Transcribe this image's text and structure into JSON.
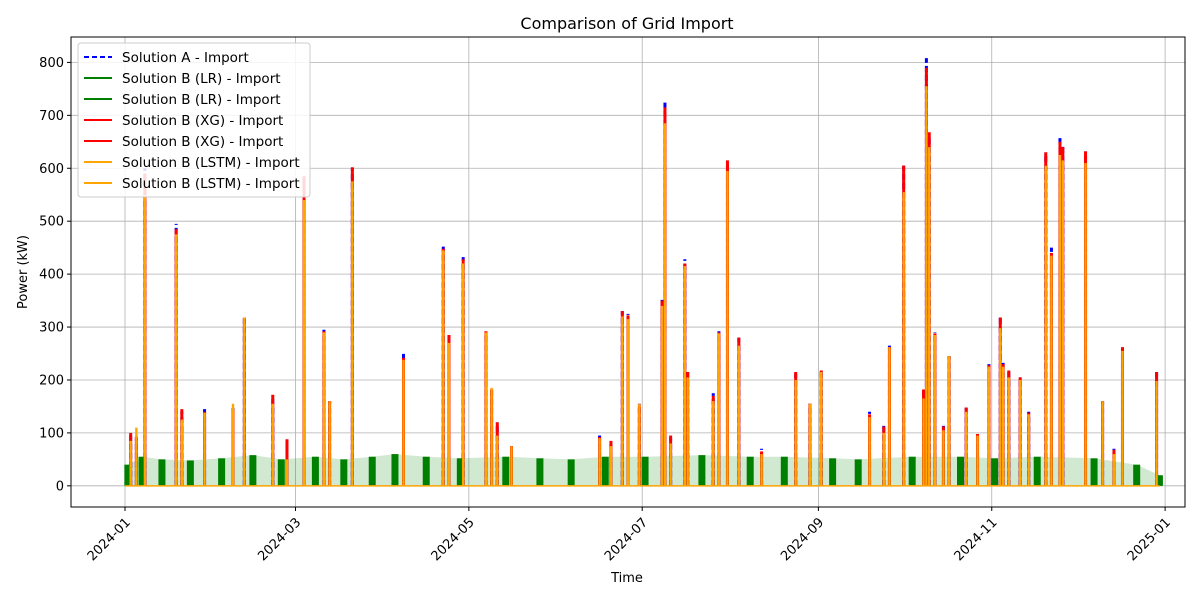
{
  "chart_data": {
    "type": "line",
    "title": "Comparison of Grid Import",
    "xlabel": "Time",
    "ylabel": "Power (kW)",
    "xlim": [
      "2023-12-13",
      "2025-01-08"
    ],
    "ylim": [
      -40,
      848
    ],
    "grid": true,
    "legend_position": "upper-left",
    "x_ticks": [
      "2024-01",
      "2024-03",
      "2024-05",
      "2024-07",
      "2024-09",
      "2024-11",
      "2025-01"
    ],
    "y_ticks": [
      0,
      100,
      200,
      300,
      400,
      500,
      600,
      700,
      800
    ],
    "legend": [
      {
        "label": "Solution A - Import",
        "color": "#0000ff",
        "dash": true
      },
      {
        "label": "Solution B (LR) - Import",
        "color": "#008000",
        "dash": false
      },
      {
        "label": "Solution B (LR) - Import",
        "color": "#008000",
        "dash": false
      },
      {
        "label": "Solution B (XG) - Import",
        "color": "#ff0000",
        "dash": false
      },
      {
        "label": "Solution B (XG) - Import",
        "color": "#ff0000",
        "dash": false
      },
      {
        "label": "Solution B (LSTM) - Import",
        "color": "#ffa500",
        "dash": false
      },
      {
        "label": "Solution B (LSTM) - Import",
        "color": "#ffa500",
        "dash": false
      }
    ],
    "series": [
      {
        "name": "Solution A - Import",
        "color": "#0000ff",
        "points": [
          [
            "2024-01-03",
            95
          ],
          [
            "2024-01-05",
            90
          ],
          [
            "2024-01-08",
            600
          ],
          [
            "2024-01-19",
            495
          ],
          [
            "2024-01-21",
            140
          ],
          [
            "2024-01-29",
            145
          ],
          [
            "2024-02-08",
            150
          ],
          [
            "2024-02-12",
            315
          ],
          [
            "2024-02-22",
            170
          ],
          [
            "2024-02-27",
            85
          ],
          [
            "2024-03-04",
            580
          ],
          [
            "2024-03-11",
            295
          ],
          [
            "2024-03-13",
            160
          ],
          [
            "2024-03-21",
            600
          ],
          [
            "2024-04-08",
            255
          ],
          [
            "2024-04-22",
            452
          ],
          [
            "2024-04-24",
            285
          ],
          [
            "2024-04-29",
            432
          ],
          [
            "2024-05-07",
            290
          ],
          [
            "2024-05-09",
            185
          ],
          [
            "2024-05-11",
            120
          ],
          [
            "2024-05-16",
            75
          ],
          [
            "2024-06-16",
            95
          ],
          [
            "2024-06-20",
            80
          ],
          [
            "2024-06-24",
            330
          ],
          [
            "2024-06-26",
            325
          ],
          [
            "2024-06-30",
            155
          ],
          [
            "2024-07-08",
            357
          ],
          [
            "2024-07-09",
            724
          ],
          [
            "2024-07-11",
            90
          ],
          [
            "2024-07-16",
            428
          ],
          [
            "2024-07-17",
            215
          ],
          [
            "2024-07-26",
            175
          ],
          [
            "2024-07-28",
            292
          ],
          [
            "2024-07-31",
            612
          ],
          [
            "2024-08-04",
            280
          ],
          [
            "2024-08-12",
            70
          ],
          [
            "2024-08-24",
            212
          ],
          [
            "2024-08-29",
            155
          ],
          [
            "2024-09-02",
            220
          ],
          [
            "2024-09-19",
            140
          ],
          [
            "2024-09-24",
            115
          ],
          [
            "2024-09-26",
            265
          ],
          [
            "2024-10-01",
            605
          ],
          [
            "2024-10-08",
            180
          ],
          [
            "2024-10-09",
            808
          ],
          [
            "2024-10-10",
            660
          ],
          [
            "2024-10-12",
            290
          ],
          [
            "2024-10-15",
            115
          ],
          [
            "2024-10-17",
            245
          ],
          [
            "2024-10-23",
            150
          ],
          [
            "2024-10-27",
            100
          ],
          [
            "2024-10-31",
            230
          ],
          [
            "2024-11-04",
            318
          ],
          [
            "2024-11-05",
            238
          ],
          [
            "2024-11-07",
            215
          ],
          [
            "2024-11-11",
            205
          ],
          [
            "2024-11-14",
            140
          ],
          [
            "2024-11-20",
            630
          ],
          [
            "2024-11-22",
            450
          ],
          [
            "2024-11-25",
            657
          ],
          [
            "2024-11-26",
            642
          ],
          [
            "2024-12-04",
            632
          ],
          [
            "2024-12-10",
            160
          ],
          [
            "2024-12-14",
            70
          ],
          [
            "2024-12-17",
            260
          ],
          [
            "2024-12-29",
            215
          ]
        ]
      },
      {
        "name": "Solution B (XG) - Import",
        "color": "#ff0000",
        "points": [
          [
            "2024-01-03",
            100
          ],
          [
            "2024-01-05",
            93
          ],
          [
            "2024-01-08",
            590
          ],
          [
            "2024-01-19",
            485
          ],
          [
            "2024-01-21",
            145
          ],
          [
            "2024-01-29",
            140
          ],
          [
            "2024-02-08",
            145
          ],
          [
            "2024-02-12",
            318
          ],
          [
            "2024-02-22",
            172
          ],
          [
            "2024-02-27",
            88
          ],
          [
            "2024-03-04",
            585
          ],
          [
            "2024-03-11",
            292
          ],
          [
            "2024-03-13",
            160
          ],
          [
            "2024-03-21",
            602
          ],
          [
            "2024-04-08",
            242
          ],
          [
            "2024-04-22",
            448
          ],
          [
            "2024-04-24",
            285
          ],
          [
            "2024-04-29",
            428
          ],
          [
            "2024-05-07",
            292
          ],
          [
            "2024-05-09",
            182
          ],
          [
            "2024-05-11",
            120
          ],
          [
            "2024-05-16",
            75
          ],
          [
            "2024-06-16",
            92
          ],
          [
            "2024-06-20",
            85
          ],
          [
            "2024-06-24",
            330
          ],
          [
            "2024-06-26",
            322
          ],
          [
            "2024-06-30",
            152
          ],
          [
            "2024-07-08",
            350
          ],
          [
            "2024-07-09",
            715
          ],
          [
            "2024-07-11",
            95
          ],
          [
            "2024-07-16",
            420
          ],
          [
            "2024-07-17",
            215
          ],
          [
            "2024-07-26",
            170
          ],
          [
            "2024-07-28",
            290
          ],
          [
            "2024-07-31",
            615
          ],
          [
            "2024-08-04",
            280
          ],
          [
            "2024-08-12",
            65
          ],
          [
            "2024-08-24",
            215
          ],
          [
            "2024-08-29",
            155
          ],
          [
            "2024-09-02",
            218
          ],
          [
            "2024-09-19",
            135
          ],
          [
            "2024-09-24",
            112
          ],
          [
            "2024-09-26",
            262
          ],
          [
            "2024-10-01",
            605
          ],
          [
            "2024-10-08",
            182
          ],
          [
            "2024-10-09",
            790
          ],
          [
            "2024-10-10",
            668
          ],
          [
            "2024-10-12",
            288
          ],
          [
            "2024-10-15",
            112
          ],
          [
            "2024-10-17",
            245
          ],
          [
            "2024-10-23",
            148
          ],
          [
            "2024-10-27",
            98
          ],
          [
            "2024-10-31",
            228
          ],
          [
            "2024-11-04",
            318
          ],
          [
            "2024-11-05",
            230
          ],
          [
            "2024-11-07",
            218
          ],
          [
            "2024-11-11",
            205
          ],
          [
            "2024-11-14",
            138
          ],
          [
            "2024-11-20",
            630
          ],
          [
            "2024-11-22",
            440
          ],
          [
            "2024-11-25",
            650
          ],
          [
            "2024-11-26",
            640
          ],
          [
            "2024-12-04",
            632
          ],
          [
            "2024-12-10",
            160
          ],
          [
            "2024-12-14",
            68
          ],
          [
            "2024-12-17",
            262
          ],
          [
            "2024-12-29",
            215
          ]
        ]
      },
      {
        "name": "Solution B (LR) - Import",
        "color": "#008000",
        "points": [
          [
            "2024-01-02",
            40
          ],
          [
            "2024-01-07",
            55
          ],
          [
            "2024-01-14",
            50
          ],
          [
            "2024-01-24",
            48
          ],
          [
            "2024-02-04",
            52
          ],
          [
            "2024-02-15",
            58
          ],
          [
            "2024-02-25",
            50
          ],
          [
            "2024-03-08",
            55
          ],
          [
            "2024-03-18",
            50
          ],
          [
            "2024-03-28",
            55
          ],
          [
            "2024-04-05",
            60
          ],
          [
            "2024-04-16",
            55
          ],
          [
            "2024-04-28",
            52
          ],
          [
            "2024-05-14",
            55
          ],
          [
            "2024-05-26",
            52
          ],
          [
            "2024-06-06",
            50
          ],
          [
            "2024-06-18",
            55
          ],
          [
            "2024-07-02",
            55
          ],
          [
            "2024-07-22",
            58
          ],
          [
            "2024-08-08",
            55
          ],
          [
            "2024-08-20",
            55
          ],
          [
            "2024-09-06",
            52
          ],
          [
            "2024-09-15",
            50
          ],
          [
            "2024-10-04",
            55
          ],
          [
            "2024-10-21",
            55
          ],
          [
            "2024-11-02",
            52
          ],
          [
            "2024-11-17",
            55
          ],
          [
            "2024-12-07",
            52
          ],
          [
            "2024-12-22",
            40
          ],
          [
            "2024-12-30",
            20
          ]
        ]
      },
      {
        "name": "Solution B (LSTM) - Import",
        "color": "#ffa500",
        "points": [
          [
            "2024-01-03",
            85
          ],
          [
            "2024-01-05",
            110
          ],
          [
            "2024-01-08",
            550
          ],
          [
            "2024-01-19",
            475
          ],
          [
            "2024-01-21",
            125
          ],
          [
            "2024-01-29",
            138
          ],
          [
            "2024-02-08",
            155
          ],
          [
            "2024-02-12",
            318
          ],
          [
            "2024-02-22",
            155
          ],
          [
            "2024-02-27",
            50
          ],
          [
            "2024-03-04",
            540
          ],
          [
            "2024-03-11",
            290
          ],
          [
            "2024-03-13",
            160
          ],
          [
            "2024-03-21",
            575
          ],
          [
            "2024-04-08",
            238
          ],
          [
            "2024-04-22",
            445
          ],
          [
            "2024-04-24",
            270
          ],
          [
            "2024-04-29",
            420
          ],
          [
            "2024-05-07",
            290
          ],
          [
            "2024-05-09",
            185
          ],
          [
            "2024-05-11",
            95
          ],
          [
            "2024-05-16",
            75
          ],
          [
            "2024-06-16",
            90
          ],
          [
            "2024-06-20",
            75
          ],
          [
            "2024-06-24",
            320
          ],
          [
            "2024-06-26",
            315
          ],
          [
            "2024-06-30",
            155
          ],
          [
            "2024-07-08",
            340
          ],
          [
            "2024-07-09",
            685
          ],
          [
            "2024-07-11",
            80
          ],
          [
            "2024-07-16",
            415
          ],
          [
            "2024-07-17",
            205
          ],
          [
            "2024-07-26",
            160
          ],
          [
            "2024-07-28",
            288
          ],
          [
            "2024-07-31",
            595
          ],
          [
            "2024-08-04",
            265
          ],
          [
            "2024-08-12",
            60
          ],
          [
            "2024-08-24",
            200
          ],
          [
            "2024-08-29",
            155
          ],
          [
            "2024-09-02",
            215
          ],
          [
            "2024-09-19",
            130
          ],
          [
            "2024-09-24",
            100
          ],
          [
            "2024-09-26",
            262
          ],
          [
            "2024-10-01",
            555
          ],
          [
            "2024-10-08",
            165
          ],
          [
            "2024-10-09",
            755
          ],
          [
            "2024-10-10",
            640
          ],
          [
            "2024-10-12",
            285
          ],
          [
            "2024-10-15",
            105
          ],
          [
            "2024-10-17",
            245
          ],
          [
            "2024-10-23",
            140
          ],
          [
            "2024-10-27",
            95
          ],
          [
            "2024-10-31",
            225
          ],
          [
            "2024-11-04",
            298
          ],
          [
            "2024-11-05",
            225
          ],
          [
            "2024-11-07",
            205
          ],
          [
            "2024-11-11",
            200
          ],
          [
            "2024-11-14",
            135
          ],
          [
            "2024-11-20",
            605
          ],
          [
            "2024-11-22",
            435
          ],
          [
            "2024-11-25",
            625
          ],
          [
            "2024-11-26",
            615
          ],
          [
            "2024-12-04",
            610
          ],
          [
            "2024-12-10",
            160
          ],
          [
            "2024-12-14",
            60
          ],
          [
            "2024-12-17",
            255
          ],
          [
            "2024-12-29",
            198
          ]
        ]
      }
    ]
  }
}
